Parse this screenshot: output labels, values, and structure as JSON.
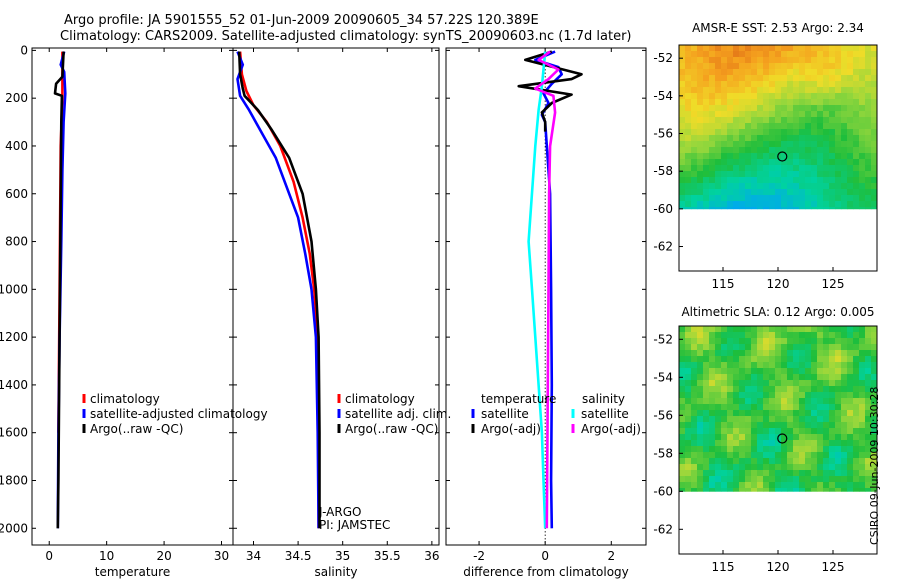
{
  "title": {
    "line1": "Argo profile: JA 5901555_52 01-Jun-2009 20090605_34 57.22S 120.389E",
    "line2": "Climatology: CARS2009. Satellite-adjusted climatology: synTS_20090603.nc (1.7d later)"
  },
  "timestamp": "CSIRO 09-Jun-2009 10:30:28",
  "colors": {
    "red": "#ff0000",
    "blue": "#0000ff",
    "black": "#000000",
    "cyan": "#00ffff",
    "magenta": "#ff00ff"
  },
  "chart_data": [
    {
      "type": "line",
      "id": "temperature",
      "xlabel": "temperature",
      "xlim": [
        -3,
        32
      ],
      "ylim": [
        2070,
        -10
      ],
      "xticks": [
        0,
        10,
        20,
        30
      ],
      "yticks": [
        0,
        200,
        400,
        600,
        800,
        1000,
        1200,
        1400,
        1600,
        1800,
        2000
      ],
      "legend": [
        "climatology",
        "satellite-adjusted climatology",
        "Argo(..raw -QC)"
      ],
      "series": [
        {
          "name": "climatology",
          "color": "#ff0000",
          "x": [
            2.3,
            2.3,
            2.3,
            2.0,
            1.8,
            1.6
          ],
          "y": [
            5,
            100,
            200,
            400,
            1000,
            1600
          ]
        },
        {
          "name": "satellite-adjusted climatology",
          "color": "#0000ff",
          "x": [
            2.6,
            2.0,
            2.6,
            2.8,
            2.5,
            2.3,
            2.1,
            1.8,
            1.6,
            1.5
          ],
          "y": [
            5,
            60,
            90,
            180,
            300,
            500,
            800,
            1200,
            1600,
            2000
          ]
        },
        {
          "name": "Argo(..raw -QC)",
          "color": "#000000",
          "x": [
            2.5,
            2.3,
            1.2,
            1.0,
            2.2,
            2.1,
            1.6,
            1.5
          ],
          "y": [
            5,
            110,
            140,
            180,
            190,
            300,
            1800,
            2000
          ]
        }
      ]
    },
    {
      "type": "line",
      "id": "salinity",
      "xlabel": "salinity",
      "xlim": [
        33.77,
        36.08
      ],
      "ylim": [
        2070,
        -10
      ],
      "xticks": [
        34,
        34.5,
        35,
        35.5,
        36
      ],
      "xtick_labels": [
        "34",
        "34.5",
        "35",
        "35.5",
        "36"
      ],
      "legend": [
        "climatology",
        "satellite adj. clim.",
        "Argo(..raw -QC)"
      ],
      "series": [
        {
          "name": "climatology",
          "color": "#ff0000",
          "x": [
            33.85,
            33.87,
            33.92,
            34.0,
            34.15,
            34.3,
            34.45,
            34.55,
            34.63,
            34.68,
            34.72,
            34.73,
            34.73
          ],
          "y": [
            5,
            100,
            170,
            230,
            300,
            400,
            550,
            700,
            850,
            1000,
            1200,
            1600,
            2000
          ]
        },
        {
          "name": "satellite adj. clim.",
          "color": "#0000ff",
          "x": [
            33.82,
            33.88,
            33.82,
            33.85,
            33.95,
            34.1,
            34.25,
            34.4,
            34.5,
            34.58,
            34.65,
            34.7,
            34.72,
            34.73
          ],
          "y": [
            5,
            60,
            120,
            190,
            250,
            350,
            450,
            600,
            700,
            850,
            1000,
            1200,
            1600,
            2000
          ]
        },
        {
          "name": "Argo(..raw -QC)",
          "color": "#000000",
          "x": [
            33.84,
            33.85,
            33.88,
            33.9,
            34.05,
            34.2,
            34.4,
            34.55,
            34.65,
            34.7,
            34.73,
            34.74,
            34.74
          ],
          "y": [
            5,
            100,
            160,
            190,
            250,
            330,
            450,
            600,
            800,
            1000,
            1200,
            1600,
            2000
          ]
        }
      ],
      "annotation": [
        "J-ARGO",
        "PI: JAMSTEC"
      ]
    },
    {
      "type": "line",
      "id": "difference",
      "xlabel": "difference from climatology",
      "xlim": [
        -3.0,
        3.05
      ],
      "ylim": [
        2070,
        -10
      ],
      "xticks": [
        -2,
        0,
        2
      ],
      "xtick_labels": [
        "-2",
        "0",
        "2"
      ],
      "legend_headers": [
        "temperature",
        "salinity"
      ],
      "legend": [
        "satellite",
        "Argo(-adj)",
        "satellite",
        "Argo(-adj)"
      ],
      "series": [
        {
          "name": "temperature satellite",
          "color": "#0000ff",
          "x": [
            0.3,
            -0.3,
            0.4,
            0.5,
            0.2,
            -0.05,
            0.1,
            -0.1,
            0.0,
            0.05,
            0.15,
            0.18,
            0.2,
            0.18,
            0.2
          ],
          "y": [
            5,
            40,
            70,
            100,
            140,
            180,
            220,
            270,
            300,
            400,
            600,
            1000,
            1400,
            1800,
            2000
          ]
        },
        {
          "name": "temperature Argo(-adj)",
          "color": "#000000",
          "x": [
            0.2,
            -0.6,
            1.1,
            0.8,
            -0.8,
            0.8,
            0.2,
            -0.1,
            0.0,
            0.0
          ],
          "y": [
            5,
            40,
            100,
            120,
            150,
            185,
            220,
            260,
            300,
            340
          ]
        },
        {
          "name": "salinity satellite",
          "color": "#00ffff",
          "x": [
            0.0,
            -0.1,
            -0.2,
            -0.3,
            -0.5,
            -0.4,
            -0.3,
            -0.2,
            -0.1,
            -0.05,
            0.0
          ],
          "y": [
            5,
            150,
            250,
            400,
            800,
            1000,
            1200,
            1400,
            1600,
            1800,
            2000
          ]
        },
        {
          "name": "salinity Argo(-adj)",
          "color": "#ff00ff",
          "x": [
            0.15,
            -0.2,
            0.4,
            0.1,
            -0.3,
            0.25,
            0.3,
            0.15,
            0.12,
            0.1,
            0.08,
            0.05
          ],
          "y": [
            5,
            40,
            80,
            120,
            160,
            190,
            260,
            400,
            600,
            1000,
            1400,
            2000
          ]
        }
      ]
    },
    {
      "type": "heatmap",
      "id": "sst",
      "title": "AMSR-E SST: 2.53 Argo: 2.34",
      "xlim": [
        111,
        129
      ],
      "ylim": [
        -63.3,
        -51.3
      ],
      "xticks": [
        115,
        120,
        125
      ],
      "yticks": [
        -52,
        -54,
        -56,
        -58,
        -60,
        -62
      ],
      "data_extent_lat": [
        -60,
        -51.3
      ],
      "marker": {
        "lon": 120.389,
        "lat": -57.22
      }
    },
    {
      "type": "heatmap",
      "id": "sla",
      "title": "Altimetric SLA: 0.12 Argo: 0.005",
      "xlim": [
        111,
        129
      ],
      "ylim": [
        -63.3,
        -51.3
      ],
      "xticks": [
        115,
        120,
        125
      ],
      "yticks": [
        -52,
        -54,
        -56,
        -58,
        -60,
        -62
      ],
      "data_extent_lat": [
        -60,
        -51.3
      ],
      "marker": {
        "lon": 120.389,
        "lat": -57.22
      }
    }
  ]
}
